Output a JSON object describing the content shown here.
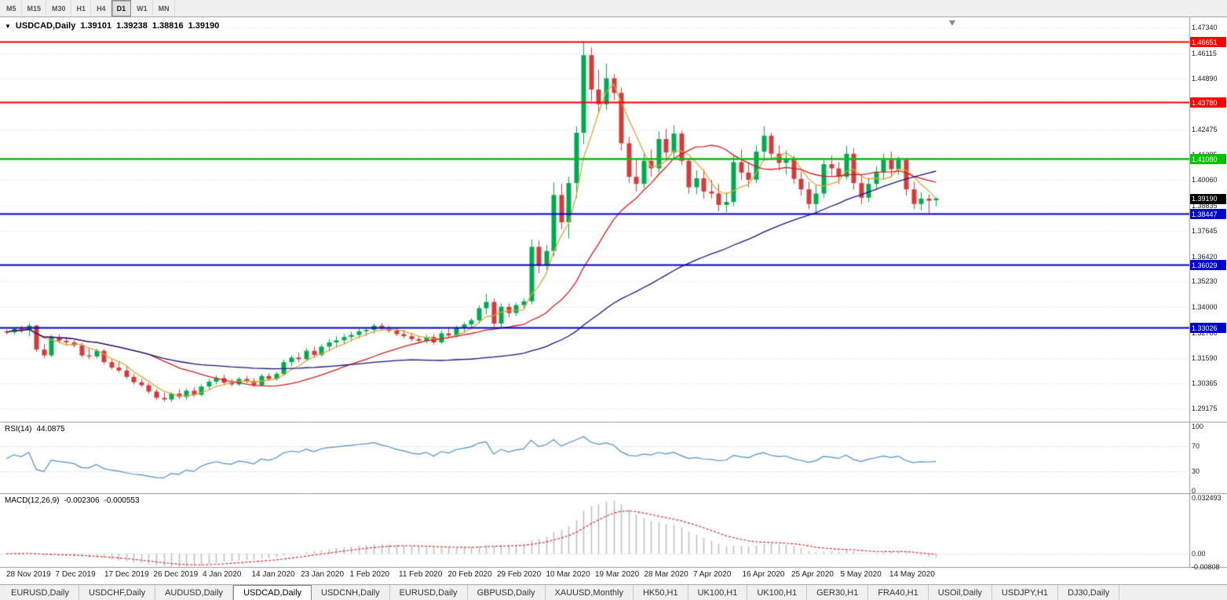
{
  "colors": {
    "bull": "#00a94f",
    "bear": "#d23c3c",
    "ma_fast": "#d8a63c",
    "ma_mid": "#cc1f1f",
    "ma_slow": "#15157e",
    "rsi_line": "#4f8ec7",
    "macd_hist": "#bdbdbd",
    "macd_signal": "#d02020",
    "hline_red": "#ff0000",
    "hline_green": "#00c300",
    "hline_blue": "#0000c8",
    "price_marker_bg": "#000000",
    "grid": "#dcdcdc"
  },
  "toolbar": {
    "timeframes": [
      "M5",
      "M15",
      "M30",
      "H1",
      "H4",
      "D1",
      "W1",
      "MN"
    ],
    "active": "D1"
  },
  "chart_header": {
    "symbol": "USDCAD,Daily",
    "open": "1.39101",
    "high": "1.39238",
    "low": "1.38816",
    "close": "1.39190"
  },
  "indicators": {
    "rsi": {
      "name": "RSI(14)",
      "value": "44.0875"
    },
    "macd": {
      "name": "MACD(12,26,9)",
      "value": "-0.002306",
      "signal": "-0.000553"
    }
  },
  "price_axis_ticks": [
    "1.47340",
    "1.46115",
    "1.44890",
    "1.43665",
    "1.42475",
    "1.41285",
    "1.40060",
    "1.38835",
    "1.37645",
    "1.36420",
    "1.35230",
    "1.34000",
    "1.32780",
    "1.31590",
    "1.30365",
    "1.29175"
  ],
  "rsi_axis_ticks": [
    "100",
    "70",
    "30",
    "0"
  ],
  "macd_axis_ticks": [
    "0.032493",
    "0.00",
    "-0.00808"
  ],
  "date_axis_labels": [
    "28 Nov 2019",
    "7 Dec 2019",
    "17 Dec 2019",
    "26 Dec 2019",
    "4 Jan 2020",
    "14 Jan 2020",
    "23 Jan 2020",
    "1 Feb 2020",
    "11 Feb 2020",
    "20 Feb 2020",
    "29 Feb 2020",
    "10 Mar 2020",
    "19 Mar 2020",
    "28 Mar 2020",
    "7 Apr 2020",
    "16 Apr 2020",
    "25 Apr 2020",
    "5 May 2020",
    "14 May 2020"
  ],
  "hlines": [
    {
      "price": 1.46651,
      "label": "1.46651",
      "color": "red"
    },
    {
      "price": 1.4378,
      "label": "1.43780",
      "color": "red"
    },
    {
      "price": 1.4108,
      "label": "1.41080",
      "color": "green"
    },
    {
      "price": 1.38447,
      "label": "1.38447",
      "color": "blue"
    },
    {
      "price": 1.36029,
      "label": "1.36029",
      "color": "blue"
    },
    {
      "price": 1.33026,
      "label": "1.33026",
      "color": "blue"
    }
  ],
  "current_price": {
    "value": 1.3919,
    "label": "1.39190"
  },
  "tabs": {
    "items": [
      "EURUSD,Daily",
      "USDCHF,Daily",
      "AUDUSD,Daily",
      "USDCAD,Daily",
      "USDCNH,Daily",
      "EURUSD,Daily",
      "GBPUSD,Daily",
      "XAUUSD,Monthly",
      "HK50,H1",
      "UK100,H1",
      "UK100,H1",
      "GER30,H1",
      "FRA40,H1",
      "USOil,Daily",
      "USDJPY,H1",
      "DJ30,Daily"
    ],
    "active_index": 3
  },
  "chart_data": {
    "type": "candlestick",
    "title": "USDCAD Daily",
    "y_range": [
      1.2905,
      1.4783
    ],
    "grid": true,
    "horizontal_lines": [
      1.46651,
      1.4378,
      1.4108,
      1.38447,
      1.36029,
      1.33026
    ],
    "moving_averages": [
      {
        "period": 5,
        "color_key": "ma_fast"
      },
      {
        "period": 20,
        "color_key": "ma_mid"
      },
      {
        "period": 55,
        "color_key": "ma_slow"
      }
    ],
    "subcharts": [
      {
        "type": "line",
        "name": "RSI(14)",
        "period": 14,
        "last": 44.0875,
        "levels": [
          30,
          70
        ],
        "range": [
          0,
          100
        ]
      },
      {
        "type": "macd",
        "name": "MACD(12,26,9)",
        "fast": 12,
        "slow": 26,
        "signal_period": 9,
        "last_macd": -0.002306,
        "last_signal": -0.000553,
        "range": [
          -0.00808,
          0.032493
        ]
      }
    ],
    "x": [
      "2019-11-28",
      "2019-11-29",
      "2019-12-02",
      "2019-12-03",
      "2019-12-04",
      "2019-12-05",
      "2019-12-06",
      "2019-12-09",
      "2019-12-10",
      "2019-12-11",
      "2019-12-12",
      "2019-12-13",
      "2019-12-16",
      "2019-12-17",
      "2019-12-18",
      "2019-12-19",
      "2019-12-20",
      "2019-12-23",
      "2019-12-24",
      "2019-12-26",
      "2019-12-27",
      "2019-12-30",
      "2019-12-31",
      "2020-01-02",
      "2020-01-03",
      "2020-01-06",
      "2020-01-07",
      "2020-01-08",
      "2020-01-09",
      "2020-01-10",
      "2020-01-13",
      "2020-01-14",
      "2020-01-15",
      "2020-01-16",
      "2020-01-17",
      "2020-01-20",
      "2020-01-21",
      "2020-01-22",
      "2020-01-23",
      "2020-01-24",
      "2020-01-27",
      "2020-01-28",
      "2020-01-29",
      "2020-01-30",
      "2020-01-31",
      "2020-02-03",
      "2020-02-04",
      "2020-02-05",
      "2020-02-06",
      "2020-02-07",
      "2020-02-10",
      "2020-02-11",
      "2020-02-12",
      "2020-02-13",
      "2020-02-14",
      "2020-02-17",
      "2020-02-18",
      "2020-02-19",
      "2020-02-20",
      "2020-02-21",
      "2020-02-24",
      "2020-02-25",
      "2020-02-26",
      "2020-02-27",
      "2020-02-28",
      "2020-03-02",
      "2020-03-03",
      "2020-03-04",
      "2020-03-05",
      "2020-03-06",
      "2020-03-09",
      "2020-03-10",
      "2020-03-11",
      "2020-03-12",
      "2020-03-13",
      "2020-03-16",
      "2020-03-17",
      "2020-03-18",
      "2020-03-19",
      "2020-03-20",
      "2020-03-23",
      "2020-03-24",
      "2020-03-25",
      "2020-03-26",
      "2020-03-27",
      "2020-03-30",
      "2020-03-31",
      "2020-04-01",
      "2020-04-02",
      "2020-04-03",
      "2020-04-06",
      "2020-04-07",
      "2020-04-08",
      "2020-04-09",
      "2020-04-10",
      "2020-04-13",
      "2020-04-14",
      "2020-04-15",
      "2020-04-16",
      "2020-04-17",
      "2020-04-20",
      "2020-04-21",
      "2020-04-22",
      "2020-04-23",
      "2020-04-24",
      "2020-04-27",
      "2020-04-28",
      "2020-04-29",
      "2020-04-30",
      "2020-05-01",
      "2020-05-04",
      "2020-05-05",
      "2020-05-06",
      "2020-05-07",
      "2020-05-08",
      "2020-05-11",
      "2020-05-12",
      "2020-05-13",
      "2020-05-14",
      "2020-05-15",
      "2020-05-18",
      "2020-05-19",
      "2020-05-20",
      "2020-05-21",
      "2020-05-22"
    ],
    "ohlc": [
      [
        1.3285,
        1.3295,
        1.3272,
        1.328
      ],
      [
        1.328,
        1.3302,
        1.327,
        1.3297
      ],
      [
        1.3297,
        1.331,
        1.3278,
        1.329
      ],
      [
        1.329,
        1.3322,
        1.3262,
        1.3312
      ],
      [
        1.3312,
        1.3318,
        1.3188,
        1.3198
      ],
      [
        1.3198,
        1.3225,
        1.3158,
        1.317
      ],
      [
        1.317,
        1.3268,
        1.3162,
        1.3255
      ],
      [
        1.3255,
        1.327,
        1.3228,
        1.324
      ],
      [
        1.324,
        1.3258,
        1.322,
        1.3232
      ],
      [
        1.3232,
        1.3245,
        1.3208,
        1.3218
      ],
      [
        1.3218,
        1.323,
        1.316,
        1.317
      ],
      [
        1.317,
        1.3205,
        1.3152,
        1.3165
      ],
      [
        1.3165,
        1.3202,
        1.3155,
        1.3192
      ],
      [
        1.3192,
        1.32,
        1.3128,
        1.3138
      ],
      [
        1.3138,
        1.3155,
        1.3102,
        1.3112
      ],
      [
        1.3112,
        1.3138,
        1.3088,
        1.3098
      ],
      [
        1.3098,
        1.3118,
        1.3058,
        1.3068
      ],
      [
        1.3068,
        1.3082,
        1.3032,
        1.3042
      ],
      [
        1.3042,
        1.3058,
        1.3018,
        1.3028
      ],
      [
        1.3028,
        1.304,
        1.2988,
        1.2998
      ],
      [
        1.2998,
        1.301,
        1.2958,
        1.2968
      ],
      [
        1.2968,
        1.2992,
        1.295,
        1.296
      ],
      [
        1.296,
        1.2995,
        1.2948,
        1.2988
      ],
      [
        1.2988,
        1.3008,
        1.2962,
        1.2972
      ],
      [
        1.2972,
        1.3012,
        1.2958,
        1.3002
      ],
      [
        1.3002,
        1.3018,
        1.2972,
        1.2982
      ],
      [
        1.2982,
        1.3032,
        1.2975,
        1.3022
      ],
      [
        1.3022,
        1.3058,
        1.3008,
        1.3045
      ],
      [
        1.3045,
        1.3075,
        1.3032,
        1.3062
      ],
      [
        1.3062,
        1.3078,
        1.3028,
        1.304
      ],
      [
        1.304,
        1.3058,
        1.3022,
        1.3032
      ],
      [
        1.3032,
        1.3068,
        1.3025,
        1.3058
      ],
      [
        1.3058,
        1.3072,
        1.3038,
        1.3048
      ],
      [
        1.3048,
        1.3062,
        1.3018,
        1.3028
      ],
      [
        1.3028,
        1.3082,
        1.3022,
        1.3072
      ],
      [
        1.3072,
        1.3085,
        1.3048,
        1.3058
      ],
      [
        1.3058,
        1.3092,
        1.305,
        1.3082
      ],
      [
        1.3082,
        1.315,
        1.3072,
        1.3138
      ],
      [
        1.3138,
        1.3172,
        1.3118,
        1.316
      ],
      [
        1.316,
        1.3182,
        1.3138,
        1.3152
      ],
      [
        1.3152,
        1.3205,
        1.3145,
        1.3192
      ],
      [
        1.3192,
        1.3212,
        1.3158,
        1.3172
      ],
      [
        1.3172,
        1.3222,
        1.3165,
        1.3212
      ],
      [
        1.3212,
        1.3248,
        1.3192,
        1.3232
      ],
      [
        1.3232,
        1.3262,
        1.3208,
        1.3242
      ],
      [
        1.3242,
        1.3272,
        1.3225,
        1.3258
      ],
      [
        1.3258,
        1.3282,
        1.3238,
        1.3268
      ],
      [
        1.3268,
        1.3298,
        1.3252,
        1.3285
      ],
      [
        1.3285,
        1.3302,
        1.3262,
        1.3292
      ],
      [
        1.3292,
        1.3322,
        1.3275,
        1.3312
      ],
      [
        1.3312,
        1.3325,
        1.3288,
        1.3298
      ],
      [
        1.3298,
        1.3312,
        1.3278,
        1.3288
      ],
      [
        1.3288,
        1.3302,
        1.3262,
        1.3272
      ],
      [
        1.3272,
        1.3292,
        1.3252,
        1.3262
      ],
      [
        1.3262,
        1.3278,
        1.3238,
        1.3248
      ],
      [
        1.3248,
        1.3262,
        1.323,
        1.324
      ],
      [
        1.324,
        1.3268,
        1.3228,
        1.3258
      ],
      [
        1.3258,
        1.3272,
        1.3222,
        1.3232
      ],
      [
        1.3232,
        1.3288,
        1.3225,
        1.3275
      ],
      [
        1.3275,
        1.3298,
        1.3252,
        1.3265
      ],
      [
        1.3265,
        1.3312,
        1.3255,
        1.3302
      ],
      [
        1.3302,
        1.3328,
        1.3282,
        1.3318
      ],
      [
        1.3318,
        1.3348,
        1.3298,
        1.3338
      ],
      [
        1.3338,
        1.3408,
        1.3322,
        1.3395
      ],
      [
        1.3395,
        1.3464,
        1.3365,
        1.3425
      ],
      [
        1.3425,
        1.3442,
        1.3308,
        1.3322
      ],
      [
        1.3322,
        1.3418,
        1.3305,
        1.3402
      ],
      [
        1.3402,
        1.3418,
        1.3352,
        1.3372
      ],
      [
        1.3372,
        1.3422,
        1.3358,
        1.341
      ],
      [
        1.341,
        1.3442,
        1.3388,
        1.3428
      ],
      [
        1.3428,
        1.3722,
        1.3415,
        1.3688
      ],
      [
        1.3688,
        1.3718,
        1.3562,
        1.3598
      ],
      [
        1.3598,
        1.3698,
        1.3578,
        1.3668
      ],
      [
        1.3668,
        1.3995,
        1.3642,
        1.3935
      ],
      [
        1.3935,
        1.3988,
        1.3772,
        1.3805
      ],
      [
        1.3805,
        1.4022,
        1.3728,
        1.3992
      ],
      [
        1.3992,
        1.4262,
        1.3922,
        1.4232
      ],
      [
        1.4232,
        1.4668,
        1.4178,
        1.4602
      ],
      [
        1.4602,
        1.4638,
        1.4382,
        1.4438
      ],
      [
        1.4438,
        1.4532,
        1.4328,
        1.4368
      ],
      [
        1.4368,
        1.4562,
        1.4342,
        1.4492
      ],
      [
        1.4492,
        1.4512,
        1.4388,
        1.4422
      ],
      [
        1.4422,
        1.4448,
        1.4148,
        1.4182
      ],
      [
        1.4182,
        1.4212,
        1.3992,
        1.4022
      ],
      [
        1.4022,
        1.4108,
        1.3952,
        1.3988
      ],
      [
        1.3988,
        1.4138,
        1.3968,
        1.4098
      ],
      [
        1.4098,
        1.4152,
        1.4022,
        1.4062
      ],
      [
        1.4062,
        1.4238,
        1.4042,
        1.4202
      ],
      [
        1.4202,
        1.4252,
        1.4108,
        1.4138
      ],
      [
        1.4138,
        1.4268,
        1.4112,
        1.4228
      ],
      [
        1.4228,
        1.4242,
        1.4078,
        1.4098
      ],
      [
        1.4098,
        1.4112,
        1.3942,
        1.3972
      ],
      [
        1.3972,
        1.4052,
        1.3938,
        1.4015
      ],
      [
        1.4015,
        1.4058,
        1.3918,
        1.3952
      ],
      [
        1.3952,
        1.4008,
        1.3918,
        1.3942
      ],
      [
        1.3942,
        1.3988,
        1.3858,
        1.3888
      ],
      [
        1.3888,
        1.3948,
        1.3852,
        1.3902
      ],
      [
        1.3902,
        1.4128,
        1.3882,
        1.4092
      ],
      [
        1.4092,
        1.4152,
        1.4008,
        1.4042
      ],
      [
        1.4042,
        1.4092,
        1.3972,
        1.4008
      ],
      [
        1.4008,
        1.4172,
        1.3992,
        1.4142
      ],
      [
        1.4142,
        1.4262,
        1.4102,
        1.4218
      ],
      [
        1.4218,
        1.4232,
        1.4102,
        1.4132
      ],
      [
        1.4132,
        1.4172,
        1.4052,
        1.4088
      ],
      [
        1.4088,
        1.4148,
        1.4032,
        1.4108
      ],
      [
        1.4108,
        1.4122,
        1.3988,
        1.4012
      ],
      [
        1.4012,
        1.4048,
        1.3932,
        1.3962
      ],
      [
        1.3962,
        1.3998,
        1.3868,
        1.3892
      ],
      [
        1.3892,
        1.3982,
        1.3852,
        1.3942
      ],
      [
        1.3942,
        1.4102,
        1.3922,
        1.4082
      ],
      [
        1.4082,
        1.4122,
        1.4028,
        1.4062
      ],
      [
        1.4062,
        1.4092,
        1.3988,
        1.4022
      ],
      [
        1.4022,
        1.4168,
        1.4008,
        1.4132
      ],
      [
        1.4132,
        1.4158,
        1.3962,
        1.3992
      ],
      [
        1.3992,
        1.4032,
        1.3892,
        1.3922
      ],
      [
        1.3922,
        1.4018,
        1.3902,
        1.3988
      ],
      [
        1.3988,
        1.4072,
        1.3958,
        1.4045
      ],
      [
        1.4045,
        1.4132,
        1.4012,
        1.4102
      ],
      [
        1.4102,
        1.4142,
        1.4018,
        1.4058
      ],
      [
        1.4058,
        1.4118,
        1.4032,
        1.4102
      ],
      [
        1.4102,
        1.4112,
        1.3932,
        1.3962
      ],
      [
        1.3962,
        1.3998,
        1.3868,
        1.3892
      ],
      [
        1.3892,
        1.3948,
        1.3862,
        1.3918
      ],
      [
        1.3918,
        1.3938,
        1.3848,
        1.3908
      ],
      [
        1.39101,
        1.39238,
        1.38816,
        1.3919
      ]
    ]
  }
}
